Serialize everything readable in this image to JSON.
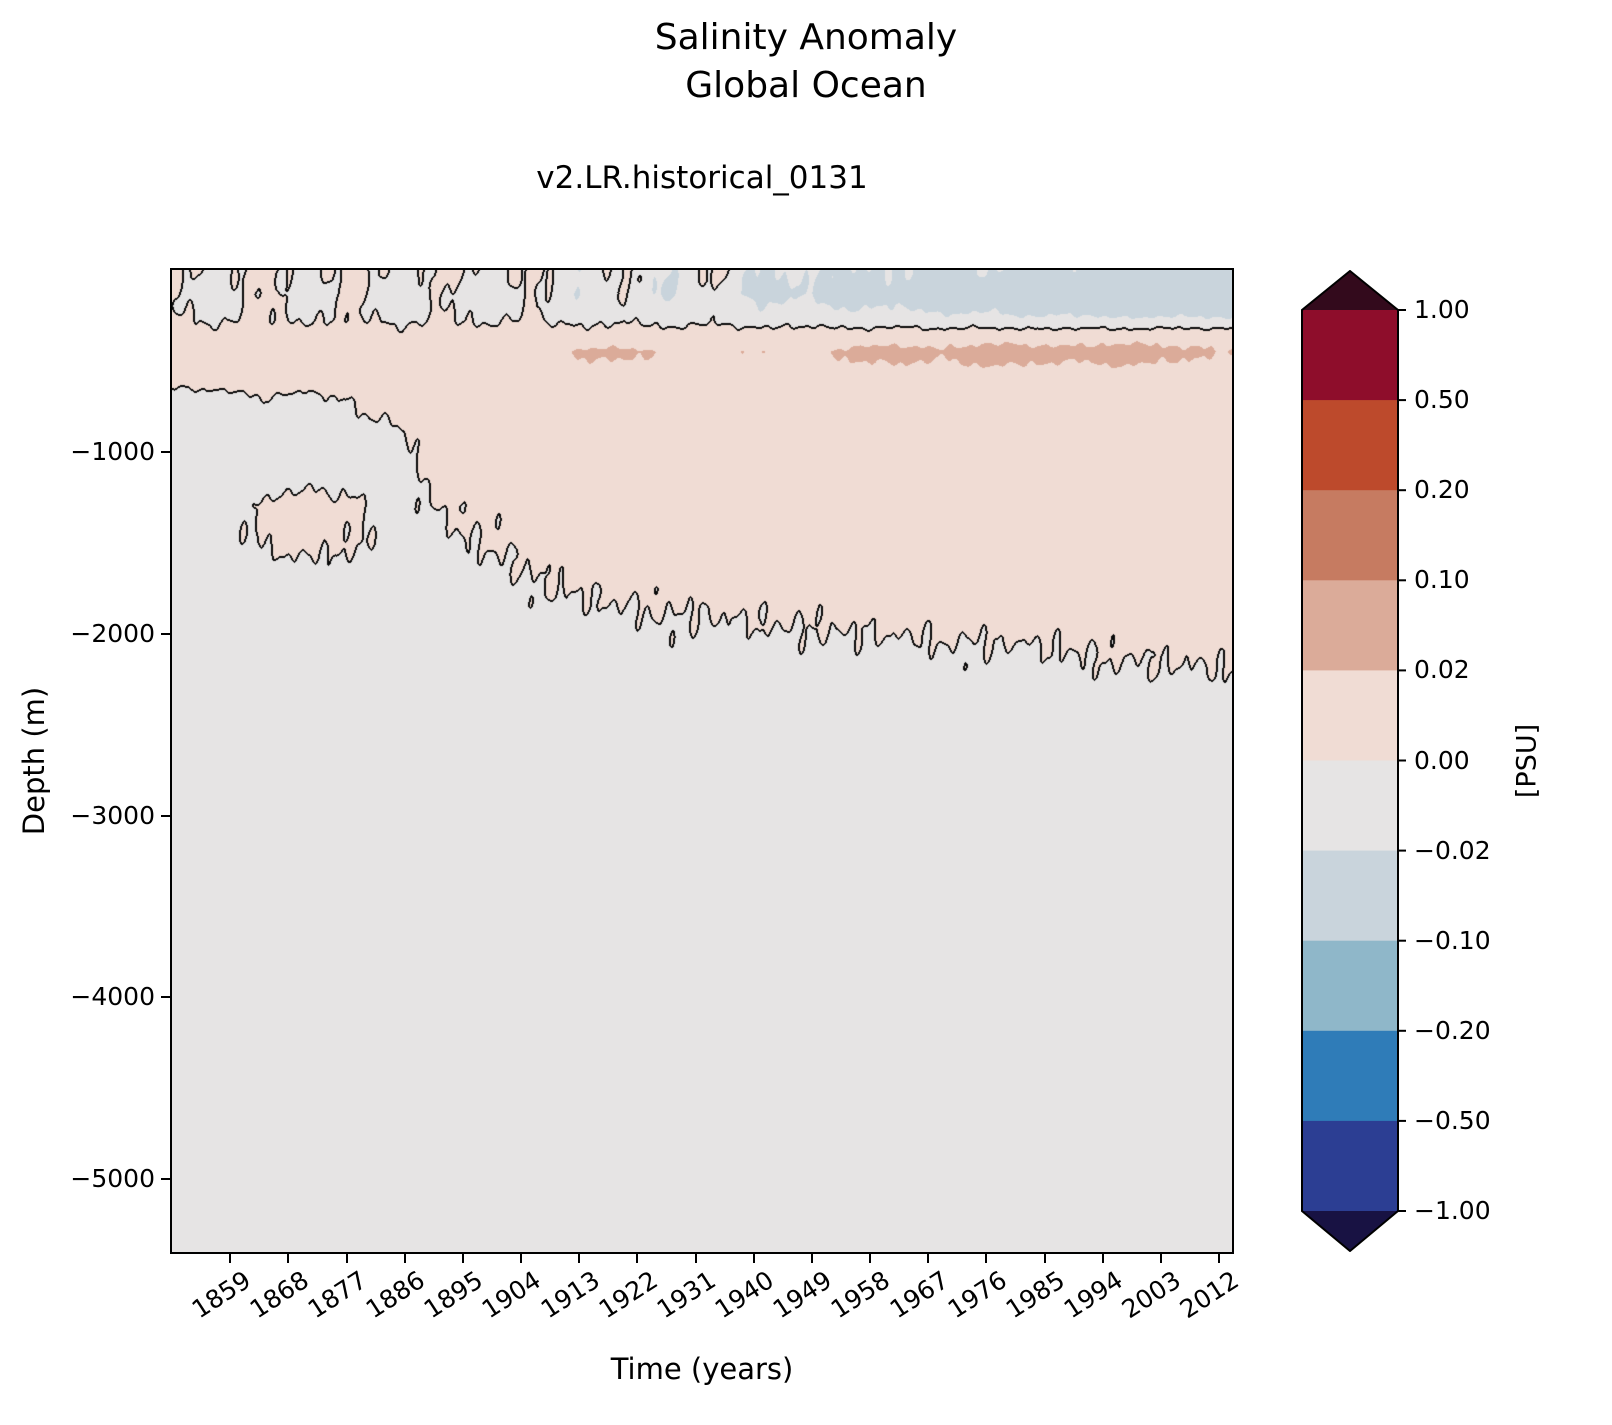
{
  "figure": {
    "suptitle_line1": "Salinity Anomaly",
    "suptitle_line2": "Global Ocean",
    "axes_title": "v2.LR.historical_0131"
  },
  "axes": {
    "x_label": "Time (years)",
    "y_label": "Depth (m)",
    "x_tick_years": [
      1859,
      1868,
      1877,
      1886,
      1895,
      1904,
      1913,
      1922,
      1931,
      1940,
      1949,
      1958,
      1967,
      1976,
      1985,
      1994,
      2003,
      2012
    ],
    "y_tick_depths": [
      -1000,
      -2000,
      -3000,
      -4000,
      -5000
    ],
    "y_tick_labels": [
      "−1000",
      "−2000",
      "−3000",
      "−4000",
      "−5000"
    ]
  },
  "colorbar": {
    "label": "[PSU]",
    "tick_labels": [
      "1.00",
      "0.50",
      "0.20",
      "0.10",
      "0.02",
      "0.00",
      "−0.02",
      "−0.10",
      "−0.20",
      "−0.50",
      "−1.00"
    ]
  },
  "chart_data": {
    "type": "heatmap",
    "title": "Salinity Anomaly Global Ocean",
    "subtitle": "v2.LR.historical_0131",
    "xlabel": "Time (years)",
    "ylabel": "Depth (m)",
    "units": "PSU",
    "x_range": [
      1850,
      2014
    ],
    "depth_range_m": [
      0,
      -5400
    ],
    "contour_line_level": 0,
    "contour_levels_psu": [
      -1.0,
      -0.5,
      -0.2,
      -0.1,
      -0.02,
      0.0,
      0.02,
      0.1,
      0.2,
      0.5,
      1.0
    ],
    "band_colors": [
      "#2c3e93",
      "#2f7cb8",
      "#8fb7c9",
      "#c9d4dc",
      "#e6e4e4",
      "#f0dcd4",
      "#dbab99",
      "#c67b61",
      "#bd4a2c",
      "#8e0d2b"
    ],
    "under_color": "#181243",
    "over_color": "#330a1c",
    "grid": {
      "time_years": [
        1850,
        1857,
        1864,
        1871,
        1878,
        1885,
        1892,
        1899,
        1906,
        1913,
        1920,
        1927,
        1934,
        1941,
        1948,
        1955,
        1962,
        1969,
        1976,
        1983,
        1990,
        1997,
        2004,
        2014
      ],
      "depth_m": [
        0,
        60,
        130,
        200,
        280,
        360,
        450,
        550,
        700,
        900,
        1100,
        1300,
        1500,
        1700,
        1900,
        2100,
        2400,
        3000,
        4000,
        5400
      ],
      "salinity_anomaly_psu": [
        [
          0.005,
          -0.01,
          0.012,
          -0.008,
          0.01,
          -0.012,
          0.008,
          -0.01,
          0.01,
          -0.015,
          0.006,
          -0.02,
          0.01,
          -0.025,
          -0.01,
          -0.03,
          -0.015,
          -0.035,
          -0.02,
          -0.04,
          -0.025,
          -0.045,
          -0.03,
          -0.04
        ],
        [
          0.004,
          -0.012,
          0.01,
          -0.01,
          0.008,
          -0.014,
          0.006,
          -0.012,
          0.008,
          -0.018,
          0.004,
          -0.025,
          0.005,
          -0.03,
          -0.015,
          -0.035,
          -0.02,
          -0.04,
          -0.03,
          -0.05,
          -0.035,
          -0.055,
          -0.04,
          -0.05
        ],
        [
          0.002,
          -0.01,
          0.006,
          -0.012,
          0.004,
          -0.015,
          0.002,
          -0.015,
          0.004,
          -0.02,
          0,
          -0.025,
          -0.005,
          -0.03,
          -0.02,
          -0.04,
          -0.03,
          -0.05,
          -0.04,
          -0.055,
          -0.045,
          -0.06,
          -0.05,
          -0.055
        ],
        [
          0.001,
          -0.006,
          0.004,
          -0.008,
          0.003,
          -0.01,
          0.002,
          -0.01,
          0.001,
          -0.012,
          -0.002,
          -0.015,
          -0.005,
          -0.02,
          -0.012,
          -0.025,
          -0.018,
          -0.03,
          -0.025,
          -0.035,
          -0.03,
          -0.04,
          -0.035,
          -0.04
        ],
        [
          0.003,
          -0.002,
          0.004,
          -0.002,
          0.003,
          -0.003,
          0.002,
          -0.002,
          0.002,
          -0.005,
          0,
          -0.006,
          -0.002,
          -0.008,
          -0.005,
          -0.01,
          -0.008,
          -0.012,
          -0.01,
          -0.014,
          -0.012,
          -0.015,
          -0.013,
          -0.014
        ],
        [
          0.006,
          0.005,
          0.007,
          0.006,
          0.006,
          0.005,
          0.007,
          0.006,
          0.008,
          0.007,
          0.008,
          0.008,
          0.009,
          0.008,
          0.01,
          0.009,
          0.011,
          0.01,
          0.012,
          0.011,
          0.012,
          0.012,
          0.013,
          0.012
        ],
        [
          0.008,
          0.008,
          0.009,
          0.009,
          0.01,
          0.01,
          0.011,
          0.012,
          0.014,
          0.022,
          0.024,
          0.018,
          0.016,
          0.02,
          0.016,
          0.024,
          0.026,
          0.022,
          0.028,
          0.026,
          0.024,
          0.028,
          0.024,
          0.02
        ],
        [
          0.008,
          0.008,
          0.009,
          0.009,
          0.01,
          0.01,
          0.011,
          0.012,
          0.013,
          0.016,
          0.016,
          0.014,
          0.014,
          0.015,
          0.014,
          0.016,
          0.017,
          0.016,
          0.018,
          0.017,
          0.016,
          0.018,
          0.016,
          0.015
        ],
        [
          -0.004,
          -0.003,
          0,
          -0.002,
          0.001,
          0.004,
          0.006,
          0.008,
          0.009,
          0.01,
          0.011,
          0.011,
          0.012,
          0.012,
          0.013,
          0.013,
          0.014,
          0.014,
          0.015,
          0.015,
          0.015,
          0.016,
          0.015,
          0.014
        ],
        [
          -0.005,
          -0.005,
          -0.004,
          -0.004,
          -0.003,
          -0.001,
          0.004,
          0.006,
          0.008,
          0.009,
          0.009,
          0.01,
          0.01,
          0.011,
          0.011,
          0.012,
          0.012,
          0.013,
          0.013,
          0.013,
          0.014,
          0.014,
          0.014,
          0.013
        ],
        [
          -0.006,
          -0.006,
          -0.005,
          -0.005,
          -0.005,
          -0.002,
          0.003,
          0.004,
          0.005,
          0.007,
          0.008,
          0.008,
          0.009,
          0.009,
          0.01,
          0.01,
          0.011,
          0.011,
          0.012,
          0.012,
          0.012,
          0.013,
          0.013,
          0.012
        ],
        [
          -0.006,
          -0.005,
          0.002,
          0.004,
          0.002,
          -0.004,
          0.001,
          0.002,
          0.004,
          0.005,
          0.006,
          0.007,
          0.007,
          0.008,
          0.008,
          0.009,
          0.009,
          0.01,
          0.01,
          0.011,
          0.011,
          0.011,
          0.011,
          0.011
        ],
        [
          -0.006,
          -0.005,
          0.001,
          0.003,
          0.001,
          -0.004,
          -0.002,
          0.001,
          0.002,
          0.004,
          0.005,
          0.005,
          0.006,
          0.006,
          0.007,
          0.007,
          0.008,
          0.008,
          0.009,
          0.009,
          0.009,
          0.01,
          0.01,
          0.01
        ],
        [
          -0.006,
          -0.006,
          -0.005,
          -0.004,
          -0.005,
          -0.005,
          -0.004,
          -0.003,
          0,
          0.002,
          0.003,
          0.003,
          0.004,
          0.004,
          0.005,
          0.005,
          0.006,
          0.006,
          0.007,
          0.007,
          0.007,
          0.008,
          0.008,
          0.008
        ],
        [
          -0.007,
          -0.007,
          -0.006,
          -0.006,
          -0.006,
          -0.006,
          -0.005,
          -0.005,
          -0.003,
          -0.002,
          -0.001,
          0,
          0,
          0.001,
          0.001,
          0.002,
          0.002,
          0.003,
          0.003,
          0.004,
          0.004,
          0.005,
          0.005,
          0.005
        ],
        [
          -0.007,
          -0.007,
          -0.007,
          -0.006,
          -0.006,
          -0.006,
          -0.006,
          -0.006,
          -0.005,
          -0.004,
          -0.004,
          -0.003,
          -0.003,
          -0.003,
          -0.002,
          -0.002,
          -0.002,
          -0.001,
          -0.001,
          -0.001,
          0,
          0.001,
          0.001,
          0.002
        ],
        [
          -0.008,
          -0.008,
          -0.008,
          -0.008,
          -0.008,
          -0.008,
          -0.008,
          -0.008,
          -0.007,
          -0.007,
          -0.007,
          -0.007,
          -0.006,
          -0.006,
          -0.006,
          -0.006,
          -0.005,
          -0.005,
          -0.005,
          -0.005,
          -0.004,
          -0.004,
          -0.004,
          -0.004
        ],
        [
          -0.008,
          -0.008,
          -0.008,
          -0.008,
          -0.008,
          -0.008,
          -0.008,
          -0.008,
          -0.008,
          -0.008,
          -0.008,
          -0.008,
          -0.008,
          -0.008,
          -0.008,
          -0.008,
          -0.008,
          -0.008,
          -0.008,
          -0.008,
          -0.008,
          -0.008,
          -0.008,
          -0.008
        ],
        [
          -0.008,
          -0.008,
          -0.008,
          -0.008,
          -0.008,
          -0.008,
          -0.008,
          -0.008,
          -0.008,
          -0.008,
          -0.008,
          -0.008,
          -0.008,
          -0.008,
          -0.008,
          -0.008,
          -0.008,
          -0.008,
          -0.008,
          -0.008,
          -0.008,
          -0.008,
          -0.008,
          -0.008
        ],
        [
          -0.008,
          -0.008,
          -0.008,
          -0.008,
          -0.008,
          -0.008,
          -0.008,
          -0.008,
          -0.008,
          -0.008,
          -0.008,
          -0.008,
          -0.008,
          -0.008,
          -0.008,
          -0.008,
          -0.008,
          -0.008,
          -0.008,
          -0.008,
          -0.008,
          -0.008,
          -0.008,
          -0.008
        ]
      ]
    }
  }
}
